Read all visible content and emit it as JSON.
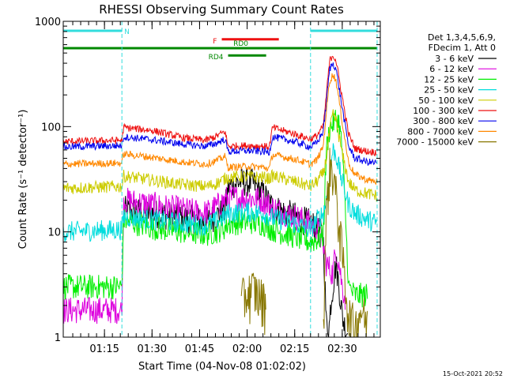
{
  "chart_data": {
    "type": "line",
    "title": "RHESSI Observing Summary Count Rates",
    "xlabel": "Start Time (04-Nov-08 01:02:02)",
    "ylabel": "Count Rate (s⁻¹ detector⁻¹)",
    "y_scale": "log",
    "ylim": [
      1,
      1000
    ],
    "xlim_minutes": [
      2,
      102
    ],
    "x_tick_labels": [
      "01:15",
      "01:30",
      "01:45",
      "02:00",
      "02:15",
      "02:30"
    ],
    "x_tick_minutes": [
      15,
      30,
      45,
      60,
      75,
      90
    ],
    "y_tick_labels": [
      "1",
      "10",
      "100",
      "1000"
    ],
    "y_tick_values": [
      1,
      10,
      100,
      1000
    ],
    "grid": false,
    "legend_placement": "right",
    "legend_header": [
      "Det 1,3,4,5,6,9,",
      "FDecim 1, Att 0"
    ],
    "timestamp": "15-Oct-2021 20:52",
    "night_intervals": [
      [
        2,
        20.5
      ],
      [
        80,
        101
      ]
    ],
    "flags": [
      {
        "label": "N",
        "color": "#33dddd",
        "level": 0.03,
        "start": 2,
        "end": 20.5,
        "label_at": 20.5,
        "label_side": "right"
      },
      {
        "label": "N",
        "color": "#33dddd",
        "level": 0.03,
        "start": 80,
        "end": 101,
        "label_at": null,
        "label_side": "right"
      },
      {
        "label": "F",
        "color": "#ee1111",
        "level": 0.057,
        "start": 52,
        "end": 70,
        "label_at": 51,
        "label_side": "left"
      },
      {
        "label": "RD0",
        "color": "#008800",
        "level": 0.085,
        "start": 2,
        "end": 101,
        "label_at": 58,
        "label_side": "center"
      },
      {
        "label": "RD4",
        "color": "#008800",
        "level": 0.108,
        "start": 54,
        "end": 66,
        "label_at": 53,
        "label_side": "left"
      }
    ],
    "series": [
      {
        "name": "3 - 6 keV",
        "color": "#000000",
        "x": [
          2,
          20.5,
          21,
          30,
          40,
          47,
          50,
          53,
          54,
          58,
          62,
          65,
          67,
          68,
          75,
          80,
          82,
          84,
          85,
          86,
          86.3,
          88,
          89,
          90,
          91,
          92,
          93,
          94
        ],
        "y": [
          null,
          null,
          16,
          15,
          13.5,
          12.5,
          14,
          16,
          27,
          30,
          29,
          23,
          19,
          17,
          14,
          12,
          11,
          9,
          1.3,
          1.3,
          2,
          5,
          3,
          1.6,
          1.2,
          1.1,
          null,
          null
        ]
      },
      {
        "name": "6 - 12 keV",
        "color": "#dd00dd",
        "x": [
          2,
          20.5,
          21,
          30,
          40,
          47,
          50,
          53,
          54,
          60,
          65,
          67,
          68,
          75,
          80,
          82,
          84,
          85,
          87,
          88,
          89,
          90,
          91,
          92,
          94
        ],
        "y": [
          1.8,
          1.8,
          20,
          18,
          16,
          15,
          17,
          20,
          21,
          21,
          20,
          18,
          17,
          14,
          12,
          11,
          7.5,
          5,
          4,
          7,
          5,
          3,
          2.3,
          null,
          null
        ]
      },
      {
        "name": "12 - 25 keV",
        "color": "#00ee00",
        "x": [
          2,
          20.5,
          21,
          30,
          40,
          47,
          50,
          53,
          54,
          60,
          65,
          67,
          68,
          75,
          80,
          82,
          84,
          85,
          86,
          88,
          89,
          90,
          91,
          92,
          94,
          98
        ],
        "y": [
          3,
          3,
          13,
          11,
          10,
          9.5,
          10,
          11,
          12,
          12.5,
          12,
          11,
          10.5,
          9,
          8,
          8.5,
          9,
          60,
          95,
          120,
          110,
          60,
          15,
          3,
          2.5,
          2.5
        ]
      },
      {
        "name": "25 - 50 keV",
        "color": "#00dddd",
        "x": [
          2,
          20.5,
          21,
          30,
          40,
          47,
          50,
          53,
          54,
          60,
          65,
          67,
          68,
          75,
          80,
          82,
          84,
          85,
          87,
          88,
          90,
          92,
          94,
          98,
          101
        ],
        "y": [
          10,
          10.5,
          14,
          13,
          12,
          11.5,
          12.5,
          14,
          15,
          15.5,
          15,
          14,
          13.5,
          12,
          10.5,
          13,
          15,
          20,
          60,
          55,
          30,
          18,
          15,
          13,
          12
        ]
      },
      {
        "name": "50 - 100 keV",
        "color": "#cccc00",
        "x": [
          2,
          20.5,
          21,
          30,
          40,
          47,
          50,
          53,
          54,
          60,
          65,
          67,
          68,
          75,
          80,
          82,
          84,
          85,
          86,
          87,
          88,
          90,
          92,
          94,
          98,
          101
        ],
        "y": [
          26,
          27,
          34,
          31,
          28,
          27,
          28.5,
          32,
          33,
          33.5,
          33,
          32,
          34,
          30,
          27,
          30,
          36,
          50,
          90,
          130,
          115,
          55,
          30,
          25,
          23,
          22
        ]
      },
      {
        "name": "100 - 300 keV",
        "color": "#ee1111",
        "x": [
          2,
          20.5,
          21,
          30,
          40,
          47,
          50,
          53,
          54,
          60,
          65,
          67,
          68,
          75,
          80,
          82,
          84,
          85,
          86,
          87,
          88,
          90,
          92,
          94,
          98,
          101
        ],
        "y": [
          72,
          74,
          98,
          92,
          78,
          74,
          80,
          90,
          65,
          66,
          65,
          64,
          98,
          85,
          76,
          82,
          100,
          200,
          420,
          480,
          430,
          190,
          85,
          62,
          58,
          57
        ]
      },
      {
        "name": "300 - 800 keV",
        "color": "#0000ee",
        "x": [
          2,
          20.5,
          21,
          30,
          40,
          47,
          50,
          53,
          54,
          60,
          65,
          67,
          68,
          75,
          80,
          82,
          84,
          85,
          86,
          87,
          88,
          90,
          92,
          94,
          98,
          101
        ],
        "y": [
          64,
          66,
          80,
          75,
          68,
          65,
          69,
          76,
          58,
          59,
          58,
          57,
          80,
          72,
          64,
          70,
          90,
          170,
          350,
          400,
          360,
          150,
          65,
          50,
          46,
          45
        ]
      },
      {
        "name": "800 - 7000 keV",
        "color": "#ff8800",
        "x": [
          2,
          20.5,
          21,
          30,
          40,
          47,
          50,
          53,
          54,
          60,
          65,
          67,
          68,
          75,
          80,
          82,
          84,
          85,
          86,
          87,
          88,
          90,
          92,
          94,
          98,
          101
        ],
        "y": [
          44,
          45,
          55,
          51,
          46,
          44,
          47,
          52,
          41,
          42,
          41,
          40,
          54,
          49,
          44,
          48,
          65,
          140,
          270,
          310,
          280,
          110,
          45,
          35,
          31,
          30
        ]
      },
      {
        "name": "7000 - 15000 keV",
        "color": "#887700",
        "x": [
          2,
          54,
          58,
          62,
          66,
          68,
          80,
          84,
          85,
          86,
          87,
          88,
          90,
          92,
          94,
          96,
          98,
          100
        ],
        "y": [
          null,
          null,
          2.2,
          2.8,
          2,
          null,
          null,
          1.2,
          15,
          40,
          38,
          22,
          6,
          1.6,
          1.2,
          1.8,
          1.2,
          null
        ]
      }
    ]
  }
}
